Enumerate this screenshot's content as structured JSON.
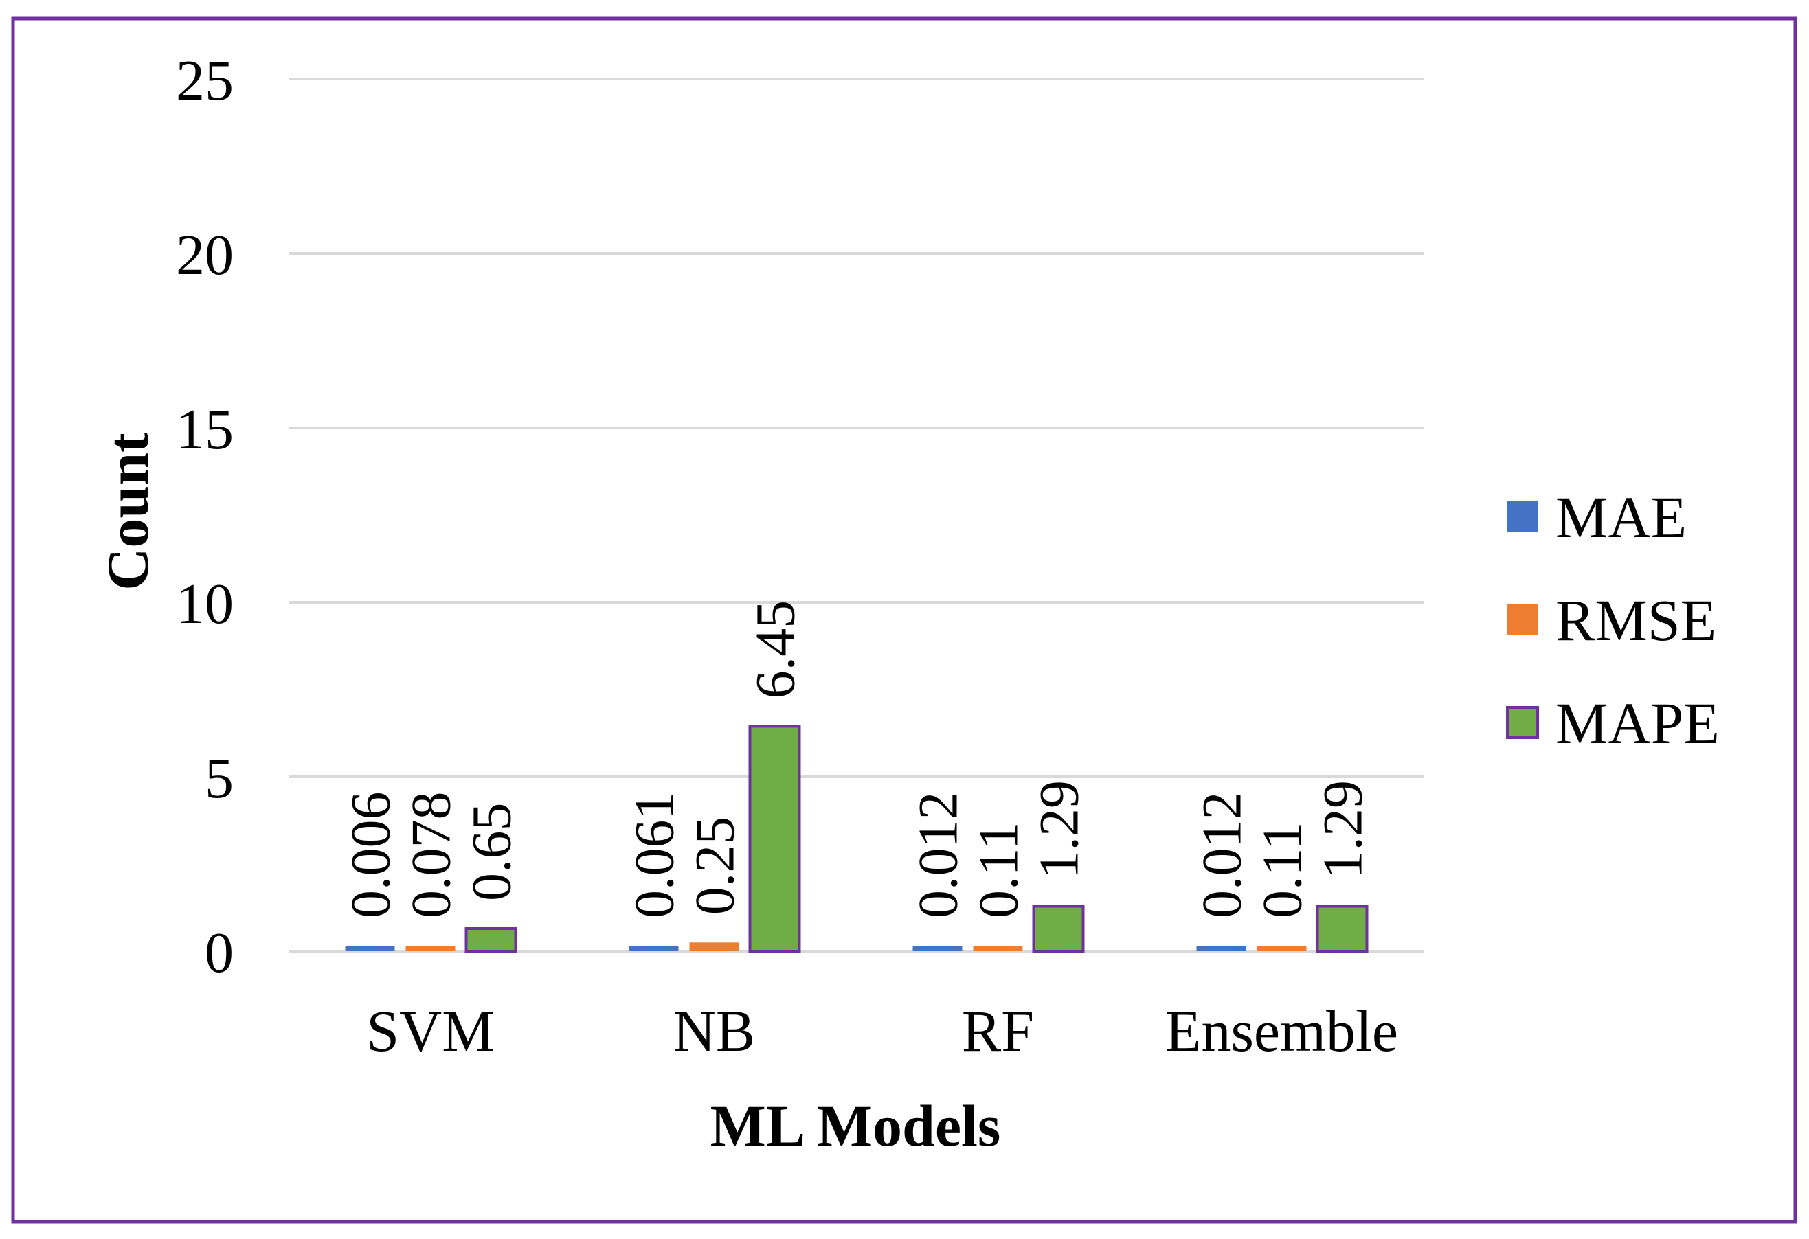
{
  "chart_data": {
    "type": "bar",
    "title": "",
    "xlabel": "ML Models",
    "ylabel": "Count",
    "ylim": [
      0,
      25
    ],
    "yticks": [
      0,
      5,
      10,
      15,
      20,
      25
    ],
    "grid": true,
    "legend_position": "right",
    "categories": [
      "SVM",
      "NB",
      "RF",
      "Ensemble"
    ],
    "series": [
      {
        "name": "MAE",
        "color": "#4472C4",
        "values": [
          0.006,
          0.061,
          0.012,
          0.012
        ],
        "labels": [
          "0.006",
          "0.061",
          "0.012",
          "0.012"
        ]
      },
      {
        "name": "RMSE",
        "color": "#ED7D31",
        "values": [
          0.078,
          0.25,
          0.11,
          0.11
        ],
        "labels": [
          "0.078",
          "0.25",
          "0.11",
          "0.11"
        ]
      },
      {
        "name": "MAPE",
        "color": "#70AD47",
        "values": [
          0.65,
          6.45,
          1.29,
          1.29
        ],
        "labels": [
          "0.65",
          "6.45",
          "1.29",
          "1.29"
        ]
      }
    ]
  },
  "colors": {
    "frame_border": "#7030A0",
    "gridline": "#D9D9D9",
    "bar_outline": "#7030A0"
  }
}
